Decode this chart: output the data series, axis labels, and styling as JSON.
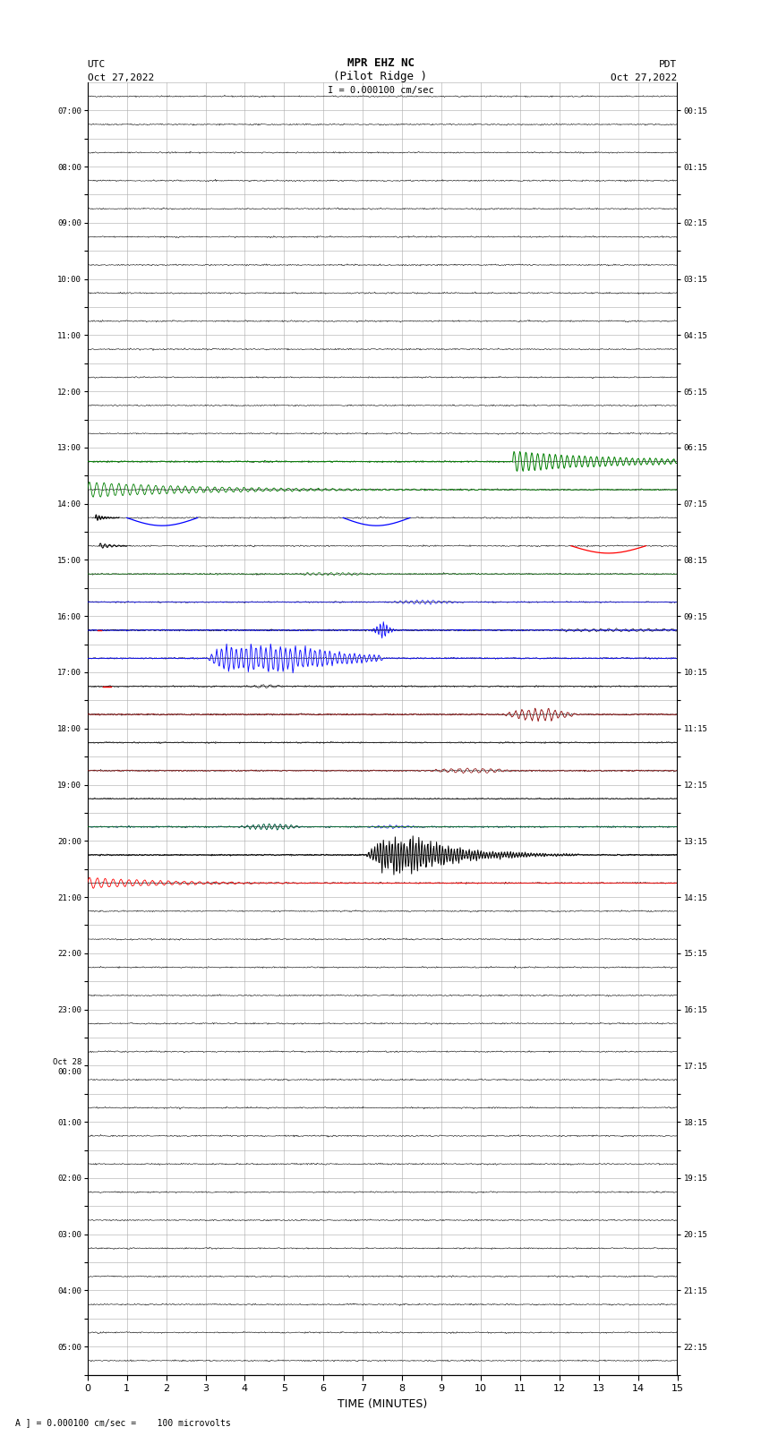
{
  "title_line1": "MPR EHZ NC",
  "title_line2": "(Pilot Ridge )",
  "title_line3": "I = 0.000100 cm/sec",
  "left_label_top": "UTC",
  "left_label_date": "Oct 27,2022",
  "right_label_top": "PDT",
  "right_label_date": "Oct 27,2022",
  "bottom_note": "A ] = 0.000100 cm/sec =    100 microvolts",
  "xlabel": "TIME (MINUTES)",
  "n_rows": 46,
  "bg_color": "#ffffff",
  "grid_color": "#aaaaaa",
  "fig_width": 8.5,
  "fig_height": 16.13
}
